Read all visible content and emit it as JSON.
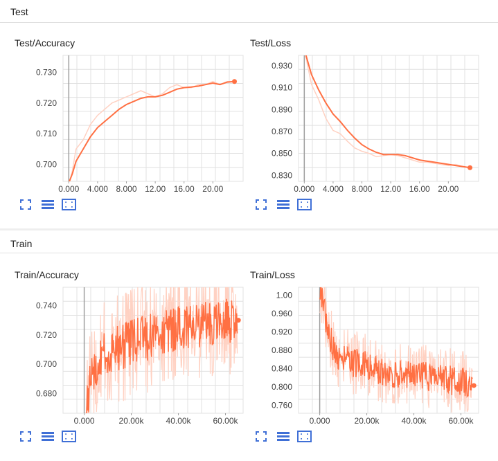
{
  "sections": [
    {
      "title": "Test",
      "charts": [
        {
          "title": "Test/Accuracy",
          "chart_data": {
            "type": "line",
            "xticks": [
              "0.000",
              "4.000",
              "8.000",
              "12.00",
              "16.00",
              "20.00"
            ],
            "yticks": [
              "0.700",
              "0.710",
              "0.720",
              "0.730"
            ],
            "xlim": [
              -0.8,
              24.2
            ],
            "ylim": [
              0.6945,
              0.7355
            ],
            "series": [
              {
                "values": [
                  [
                    0,
                    0.693
                  ],
                  [
                    0.5,
                    0.698
                  ],
                  [
                    1,
                    0.705
                  ],
                  [
                    2,
                    0.708
                  ],
                  [
                    3,
                    0.713
                  ],
                  [
                    4,
                    0.716
                  ],
                  [
                    5,
                    0.718
                  ],
                  [
                    6,
                    0.72
                  ],
                  [
                    7,
                    0.721
                  ],
                  [
                    8,
                    0.722
                  ],
                  [
                    9,
                    0.723
                  ],
                  [
                    10,
                    0.724
                  ],
                  [
                    11,
                    0.723
                  ],
                  [
                    12,
                    0.722
                  ],
                  [
                    13,
                    0.723
                  ],
                  [
                    14,
                    0.725
                  ],
                  [
                    15,
                    0.726
                  ],
                  [
                    16,
                    0.725
                  ],
                  [
                    17,
                    0.725
                  ],
                  [
                    18,
                    0.726
                  ],
                  [
                    19,
                    0.726
                  ],
                  [
                    20,
                    0.727
                  ],
                  [
                    21,
                    0.726
                  ],
                  [
                    22,
                    0.727
                  ],
                  [
                    23,
                    0.727
                  ]
                ],
                "color": "#ffd1c2"
              },
              {
                "values": [
                  [
                    0,
                    0.694
                  ],
                  [
                    0.5,
                    0.697
                  ],
                  [
                    1,
                    0.701
                  ],
                  [
                    2,
                    0.705
                  ],
                  [
                    3,
                    0.709
                  ],
                  [
                    4,
                    0.712
                  ],
                  [
                    5,
                    0.714
                  ],
                  [
                    6,
                    0.716
                  ],
                  [
                    7,
                    0.718
                  ],
                  [
                    8,
                    0.7195
                  ],
                  [
                    9,
                    0.7205
                  ],
                  [
                    10,
                    0.7215
                  ],
                  [
                    11,
                    0.722
                  ],
                  [
                    12,
                    0.722
                  ],
                  [
                    13,
                    0.7225
                  ],
                  [
                    14,
                    0.7235
                  ],
                  [
                    15,
                    0.7245
                  ],
                  [
                    16,
                    0.725
                  ],
                  [
                    17,
                    0.7252
                  ],
                  [
                    18,
                    0.7255
                  ],
                  [
                    19,
                    0.726
                  ],
                  [
                    20,
                    0.7265
                  ],
                  [
                    21,
                    0.726
                  ],
                  [
                    22,
                    0.7268
                  ],
                  [
                    23,
                    0.727
                  ]
                ],
                "color": "#ff7043"
              }
            ]
          }
        },
        {
          "title": "Test/Loss",
          "chart_data": {
            "type": "line",
            "xticks": [
              "0.000",
              "4.000",
              "8.000",
              "12.00",
              "16.00",
              "20.00"
            ],
            "yticks": [
              "0.930",
              "0.910",
              "0.890",
              "0.870",
              "0.850",
              "0.830"
            ],
            "xlim": [
              -0.8,
              24.2
            ],
            "ylim": [
              0.8245,
              0.9395
            ],
            "series": [
              {
                "values": [
                  [
                    0,
                    0.945
                  ],
                  [
                    1,
                    0.913
                  ],
                  [
                    2,
                    0.899
                  ],
                  [
                    3,
                    0.882
                  ],
                  [
                    4,
                    0.871
                  ],
                  [
                    5,
                    0.868
                  ],
                  [
                    6,
                    0.861
                  ],
                  [
                    7,
                    0.855
                  ],
                  [
                    8,
                    0.852
                  ],
                  [
                    9,
                    0.85
                  ],
                  [
                    10,
                    0.847
                  ],
                  [
                    11,
                    0.848
                  ],
                  [
                    12,
                    0.849
                  ],
                  [
                    13,
                    0.848
                  ],
                  [
                    14,
                    0.846
                  ],
                  [
                    15,
                    0.844
                  ],
                  [
                    16,
                    0.842
                  ],
                  [
                    17,
                    0.842
                  ],
                  [
                    18,
                    0.841
                  ],
                  [
                    19,
                    0.84
                  ],
                  [
                    20,
                    0.839
                  ],
                  [
                    21,
                    0.84
                  ],
                  [
                    22,
                    0.838
                  ],
                  [
                    23,
                    0.837
                  ]
                ],
                "color": "#ffd1c2"
              },
              {
                "values": [
                  [
                    0,
                    0.945
                  ],
                  [
                    1,
                    0.922
                  ],
                  [
                    2,
                    0.908
                  ],
                  [
                    3,
                    0.896
                  ],
                  [
                    4,
                    0.886
                  ],
                  [
                    5,
                    0.879
                  ],
                  [
                    6,
                    0.871
                  ],
                  [
                    7,
                    0.864
                  ],
                  [
                    8,
                    0.858
                  ],
                  [
                    9,
                    0.854
                  ],
                  [
                    10,
                    0.851
                  ],
                  [
                    11,
                    0.849
                  ],
                  [
                    12,
                    0.849
                  ],
                  [
                    13,
                    0.849
                  ],
                  [
                    14,
                    0.848
                  ],
                  [
                    15,
                    0.846
                  ],
                  [
                    16,
                    0.844
                  ],
                  [
                    17,
                    0.843
                  ],
                  [
                    18,
                    0.842
                  ],
                  [
                    19,
                    0.841
                  ],
                  [
                    20,
                    0.84
                  ],
                  [
                    21,
                    0.839
                  ],
                  [
                    22,
                    0.838
                  ],
                  [
                    23,
                    0.837
                  ]
                ],
                "color": "#ff7043"
              }
            ]
          }
        }
      ]
    },
    {
      "title": "Train",
      "charts": [
        {
          "title": "Train/Accuracy",
          "chart_data": {
            "type": "line",
            "xticks": [
              "0.000",
              "20.00k",
              "40.00k",
              "60.00k"
            ],
            "yticks": [
              "0.740",
              "0.720",
              "0.700",
              "0.680"
            ],
            "xlim": [
              -9000,
              67500
            ],
            "ylim": [
              0.6665,
              0.7525
            ],
            "noisy": true,
            "series": [
              {
                "trend": [
                  [
                    0,
                    0.66
                  ],
                  [
                    1500,
                    0.675
                  ],
                  [
                    3000,
                    0.69
                  ],
                  [
                    6000,
                    0.702
                  ],
                  [
                    10000,
                    0.708
                  ],
                  [
                    20000,
                    0.715
                  ],
                  [
                    30000,
                    0.72
                  ],
                  [
                    40000,
                    0.723
                  ],
                  [
                    50000,
                    0.727
                  ],
                  [
                    60000,
                    0.73
                  ],
                  [
                    65000,
                    0.731
                  ]
                ],
                "amplitude": 0.038,
                "samples": 300,
                "color": "#ffd1c2"
              },
              {
                "trend": [
                  [
                    0,
                    0.66
                  ],
                  [
                    1500,
                    0.675
                  ],
                  [
                    3000,
                    0.69
                  ],
                  [
                    6000,
                    0.702
                  ],
                  [
                    10000,
                    0.708
                  ],
                  [
                    20000,
                    0.715
                  ],
                  [
                    30000,
                    0.72
                  ],
                  [
                    40000,
                    0.723
                  ],
                  [
                    50000,
                    0.727
                  ],
                  [
                    60000,
                    0.73
                  ],
                  [
                    65000,
                    0.731
                  ]
                ],
                "amplitude": 0.016,
                "samples": 300,
                "color": "#ff7043"
              }
            ],
            "last_point": [
              65500,
              0.73
            ]
          }
        },
        {
          "title": "Train/Loss",
          "chart_data": {
            "type": "line",
            "xticks": [
              "0.000",
              "20.00k",
              "40.00k",
              "60.00k"
            ],
            "yticks": [
              "1.00",
              "0.960",
              "0.920",
              "0.880",
              "0.840",
              "0.800",
              "0.760"
            ],
            "xlim": [
              -9000,
              67500
            ],
            "ylim": [
              0.7425,
              1.0175
            ],
            "noisy": true,
            "series": [
              {
                "trend": [
                  [
                    0,
                    1.02
                  ],
                  [
                    1500,
                    0.99
                  ],
                  [
                    3000,
                    0.93
                  ],
                  [
                    6000,
                    0.88
                  ],
                  [
                    10000,
                    0.86
                  ],
                  [
                    20000,
                    0.845
                  ],
                  [
                    30000,
                    0.83
                  ],
                  [
                    40000,
                    0.825
                  ],
                  [
                    50000,
                    0.82
                  ],
                  [
                    60000,
                    0.81
                  ],
                  [
                    65000,
                    0.805
                  ]
                ],
                "amplitude": 0.07,
                "samples": 300,
                "color": "#ffd1c2"
              },
              {
                "trend": [
                  [
                    0,
                    1.02
                  ],
                  [
                    1500,
                    0.99
                  ],
                  [
                    3000,
                    0.93
                  ],
                  [
                    6000,
                    0.88
                  ],
                  [
                    10000,
                    0.86
                  ],
                  [
                    20000,
                    0.845
                  ],
                  [
                    30000,
                    0.83
                  ],
                  [
                    40000,
                    0.825
                  ],
                  [
                    50000,
                    0.82
                  ],
                  [
                    60000,
                    0.81
                  ],
                  [
                    65000,
                    0.805
                  ]
                ],
                "amplitude": 0.032,
                "samples": 300,
                "color": "#ff7043"
              }
            ],
            "last_point": [
              65500,
              0.803
            ]
          }
        }
      ]
    }
  ],
  "icons": [
    "fit-domain-icon",
    "data-table-icon",
    "expand-chart-icon"
  ],
  "colors": {
    "accent": "#ff7043",
    "smoothed_raw": "#ffd1c2",
    "icon_blue": "#3f6fd6",
    "grid": "#e0e0e0"
  }
}
